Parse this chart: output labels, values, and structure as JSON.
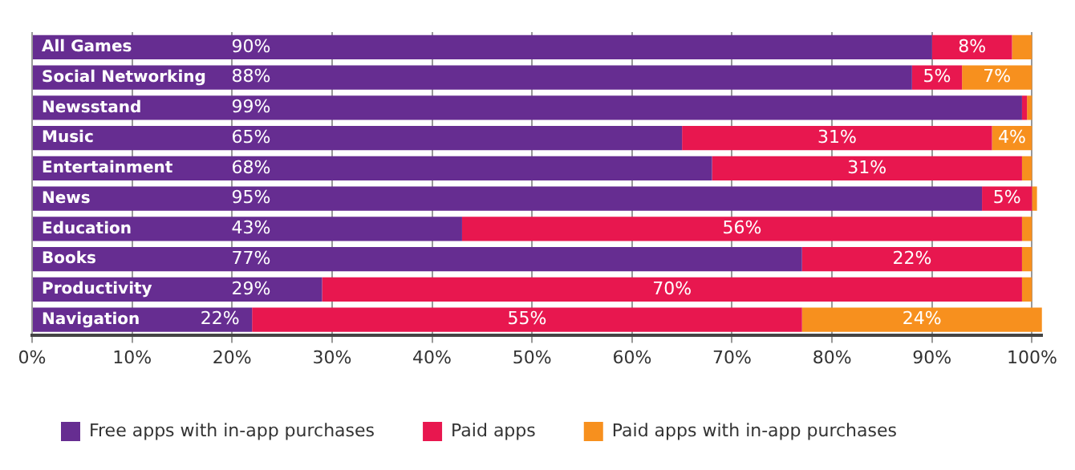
{
  "chart_data": {
    "type": "bar",
    "orientation": "horizontal",
    "stacked": true,
    "categories": [
      "All Games",
      "Social Networking",
      "Newsstand",
      "Music",
      "Entertainment",
      "News",
      "Education",
      "Books",
      "Productivity",
      "Navigation"
    ],
    "series": [
      {
        "name": "Free apps with in-app purchases",
        "color": "#662d91",
        "values": [
          90,
          88,
          99,
          65,
          68,
          95,
          43,
          77,
          29,
          22
        ],
        "value_labels": [
          "90%",
          "88%",
          "99%",
          "65%",
          "68%",
          "95%",
          "43%",
          "77%",
          "29%",
          "22%"
        ]
      },
      {
        "name": "Paid apps",
        "color": "#e8174f",
        "values": [
          8,
          5,
          0.5,
          31,
          31,
          5,
          56,
          22,
          70,
          55
        ],
        "value_labels": [
          "8%",
          "5%",
          null,
          "31%",
          "31%",
          "5%",
          "56%",
          "22%",
          "70%",
          "55%"
        ]
      },
      {
        "name": "Paid apps with in-app purchases",
        "color": "#f7901e",
        "values": [
          2,
          7,
          0.5,
          4,
          1,
          0.5,
          1,
          1,
          1,
          24
        ],
        "value_labels": [
          null,
          "7%",
          null,
          "4%",
          null,
          null,
          null,
          null,
          null,
          "24%"
        ]
      }
    ],
    "xlim": [
      0,
      101
    ],
    "xticks": [
      {
        "value": 0,
        "label": "0%"
      },
      {
        "value": 10,
        "label": "10%"
      },
      {
        "value": 20,
        "label": "20%"
      },
      {
        "value": 30,
        "label": "30%"
      },
      {
        "value": 40,
        "label": "40%"
      },
      {
        "value": 50,
        "label": "50%"
      },
      {
        "value": 60,
        "label": "60%"
      },
      {
        "value": 70,
        "label": "70%"
      },
      {
        "value": 80,
        "label": "80%"
      },
      {
        "value": 90,
        "label": "90%"
      },
      {
        "value": 100,
        "label": "100%"
      }
    ],
    "grid": "x",
    "legend": "bottom"
  }
}
